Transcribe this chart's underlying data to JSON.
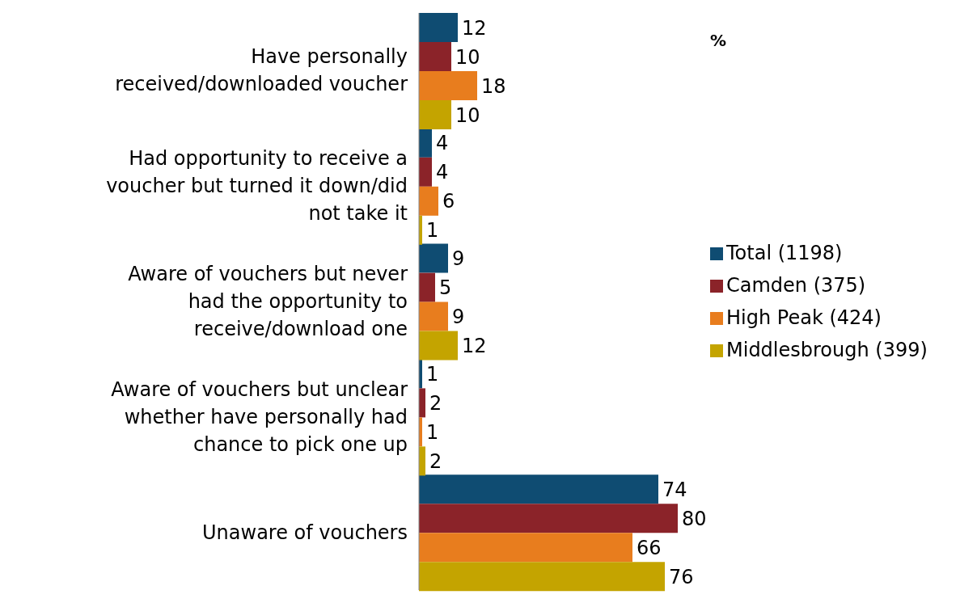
{
  "chart_data": {
    "type": "bar",
    "orientation": "horizontal",
    "categories": [
      "Have personally received/downloaded voucher",
      "Had opportunity to receive a voucher but turned it down/did not take it",
      "Aware of vouchers but never had the opportunity to receive/download one",
      "Aware of vouchers but unclear whether have personally had chance to pick one up",
      "Unaware of vouchers"
    ],
    "series": [
      {
        "name": "Total (1198)",
        "color": "#0f4c72",
        "values": [
          12,
          4,
          9,
          1,
          74
        ]
      },
      {
        "name": "Camden (375)",
        "color": "#8b2329",
        "values": [
          10,
          4,
          5,
          2,
          80
        ]
      },
      {
        "name": "High Peak (424)",
        "color": "#e87d1e",
        "values": [
          18,
          6,
          9,
          1,
          66
        ]
      },
      {
        "name": "Middlesbrough (399)",
        "color": "#c4a400",
        "values": [
          10,
          1,
          12,
          2,
          76
        ]
      }
    ],
    "data_labels": true,
    "legend": "right",
    "grid": false,
    "annotations": [
      "%"
    ]
  }
}
